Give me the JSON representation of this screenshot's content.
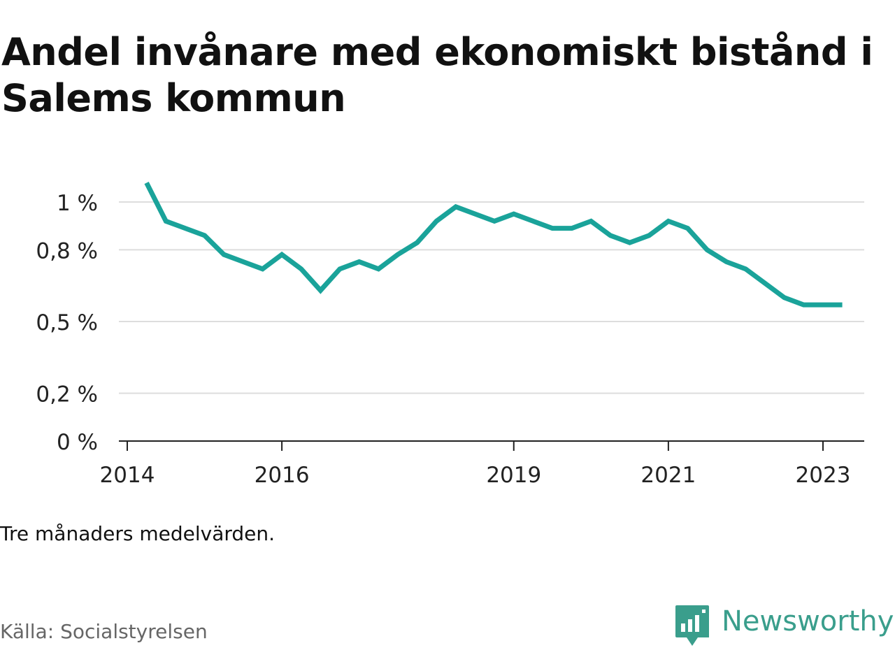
{
  "title": "Andel invånare med ekonomiskt bistånd i Salems kommun",
  "note": "Tre månaders medelvärden.",
  "source": "Källa: Socialstyrelsen",
  "brand": {
    "name": "Newsworthy",
    "icon": "newsworthy-logo-icon",
    "color": "#3a9e8c"
  },
  "chart_data": {
    "type": "line",
    "title": "Andel invånare med ekonomiskt bistånd i Salems kommun",
    "xlabel": "",
    "ylabel": "",
    "x_ticks": [
      "2014",
      "2016",
      "2019",
      "2021",
      "2023"
    ],
    "y_ticks": [
      "0 %",
      "0,2 %",
      "0,5 %",
      "0,8 %",
      "1 %"
    ],
    "ylim": [
      0,
      1.0
    ],
    "grid": true,
    "line_color": "#1aa39a",
    "series": [
      {
        "x": [
          "2014-04",
          "2014-07",
          "2014-10",
          "2015-01",
          "2015-04",
          "2015-07",
          "2015-10",
          "2016-01",
          "2016-04",
          "2016-07",
          "2016-10",
          "2017-01",
          "2017-04",
          "2017-07",
          "2017-10",
          "2018-01",
          "2018-04",
          "2018-07",
          "2018-10",
          "2019-01",
          "2019-04",
          "2019-07",
          "2019-10",
          "2020-01",
          "2020-04",
          "2020-07",
          "2020-10",
          "2021-01",
          "2021-04",
          "2021-07",
          "2021-10",
          "2022-01",
          "2022-04",
          "2022-07",
          "2022-10",
          "2023-01",
          "2023-04"
        ],
        "values": [
          1.08,
          0.92,
          0.89,
          0.86,
          0.78,
          0.75,
          0.72,
          0.78,
          0.72,
          0.63,
          0.72,
          0.75,
          0.72,
          0.78,
          0.83,
          0.92,
          0.98,
          0.95,
          0.92,
          0.95,
          0.92,
          0.89,
          0.89,
          0.92,
          0.86,
          0.83,
          0.86,
          0.92,
          0.89,
          0.8,
          0.75,
          0.72,
          0.66,
          0.6,
          0.57,
          0.57,
          0.57
        ]
      }
    ]
  }
}
